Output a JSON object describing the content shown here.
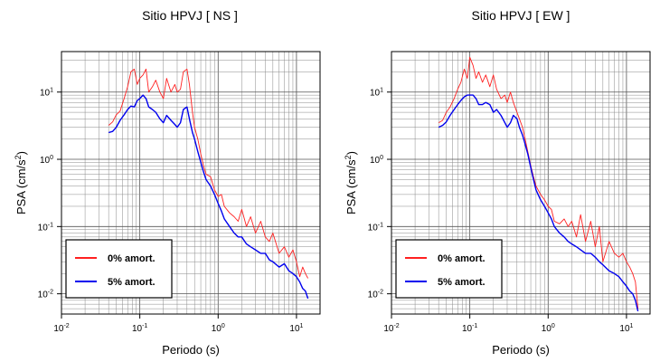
{
  "chart_data": [
    {
      "type": "line",
      "title": "Sitio HPVJ [ NS ]",
      "xlabel": "Periodo (s)",
      "ylabel": "PSA (cm/s²)",
      "xscale": "log",
      "yscale": "log",
      "xlim": [
        0.01,
        20
      ],
      "ylim": [
        0.005,
        40
      ],
      "xticks": [
        {
          "value": 0.01,
          "base": "10",
          "exp": "-2"
        },
        {
          "value": 0.1,
          "base": "10",
          "exp": "-1"
        },
        {
          "value": 1,
          "base": "10",
          "exp": "0"
        },
        {
          "value": 10,
          "base": "10",
          "exp": "1"
        }
      ],
      "yticks": [
        {
          "value": 0.01,
          "base": "10",
          "exp": "-2"
        },
        {
          "value": 0.1,
          "base": "10",
          "exp": "-1"
        },
        {
          "value": 1,
          "base": "10",
          "exp": "0"
        },
        {
          "value": 10,
          "base": "10",
          "exp": "1"
        }
      ],
      "grid": true,
      "legend_position": "bottom-left",
      "series": [
        {
          "name": "0% amort.",
          "color": "#ff2020",
          "x": [
            0.04,
            0.045,
            0.05,
            0.056,
            0.063,
            0.07,
            0.077,
            0.085,
            0.093,
            0.1,
            0.11,
            0.12,
            0.13,
            0.145,
            0.16,
            0.18,
            0.2,
            0.22,
            0.25,
            0.28,
            0.3,
            0.33,
            0.36,
            0.4,
            0.43,
            0.47,
            0.5,
            0.55,
            0.6,
            0.65,
            0.7,
            0.8,
            0.9,
            1.0,
            1.1,
            1.2,
            1.4,
            1.6,
            1.8,
            2.0,
            2.3,
            2.6,
            3.0,
            3.5,
            4.0,
            4.5,
            5.0,
            6.0,
            7.0,
            8.0,
            9.0,
            10.0,
            11.0,
            12.0,
            13.0,
            14.0
          ],
          "y": [
            3.2,
            3.6,
            4.6,
            5.2,
            8.0,
            12.0,
            20.0,
            22.0,
            13.0,
            16.0,
            18.0,
            22.0,
            10.0,
            12.0,
            15.0,
            10.0,
            8.0,
            16.0,
            10.0,
            13.0,
            10.0,
            11.0,
            20.0,
            22.0,
            13.0,
            5.0,
            3.0,
            2.0,
            1.2,
            0.8,
            0.6,
            0.55,
            0.35,
            0.28,
            0.3,
            0.2,
            0.16,
            0.14,
            0.12,
            0.18,
            0.1,
            0.14,
            0.08,
            0.12,
            0.07,
            0.06,
            0.08,
            0.04,
            0.05,
            0.035,
            0.045,
            0.03,
            0.018,
            0.025,
            0.02,
            0.017
          ]
        },
        {
          "name": "5% amort.",
          "color": "#0000ee",
          "x": [
            0.04,
            0.045,
            0.05,
            0.056,
            0.063,
            0.07,
            0.077,
            0.085,
            0.093,
            0.1,
            0.11,
            0.12,
            0.13,
            0.145,
            0.16,
            0.18,
            0.2,
            0.22,
            0.25,
            0.28,
            0.3,
            0.33,
            0.36,
            0.4,
            0.43,
            0.47,
            0.5,
            0.55,
            0.6,
            0.65,
            0.7,
            0.8,
            0.9,
            1.0,
            1.1,
            1.2,
            1.4,
            1.6,
            1.8,
            2.0,
            2.3,
            2.6,
            3.0,
            3.5,
            4.0,
            4.5,
            5.0,
            6.0,
            7.0,
            8.0,
            9.0,
            10.0,
            11.0,
            12.0,
            13.0,
            14.0
          ],
          "y": [
            2.5,
            2.6,
            3.0,
            3.8,
            4.6,
            5.5,
            6.2,
            6.0,
            7.5,
            8.0,
            9.0,
            8.0,
            6.0,
            5.5,
            5.0,
            4.0,
            3.5,
            4.5,
            3.8,
            3.3,
            3.0,
            3.5,
            5.5,
            6.0,
            4.0,
            2.5,
            2.0,
            1.3,
            0.9,
            0.65,
            0.5,
            0.4,
            0.3,
            0.22,
            0.17,
            0.13,
            0.1,
            0.08,
            0.07,
            0.07,
            0.055,
            0.05,
            0.045,
            0.04,
            0.04,
            0.032,
            0.03,
            0.025,
            0.028,
            0.022,
            0.02,
            0.018,
            0.015,
            0.012,
            0.011,
            0.0085
          ]
        }
      ]
    },
    {
      "type": "line",
      "title": "Sitio HPVJ [ EW ]",
      "xlabel": "Periodo (s)",
      "ylabel": "PSA (cm/s²)",
      "xscale": "log",
      "yscale": "log",
      "xlim": [
        0.01,
        20
      ],
      "ylim": [
        0.005,
        40
      ],
      "xticks": [
        {
          "value": 0.01,
          "base": "10",
          "exp": "-2"
        },
        {
          "value": 0.1,
          "base": "10",
          "exp": "-1"
        },
        {
          "value": 1,
          "base": "10",
          "exp": "0"
        },
        {
          "value": 10,
          "base": "10",
          "exp": "1"
        }
      ],
      "yticks": [
        {
          "value": 0.01,
          "base": "10",
          "exp": "-2"
        },
        {
          "value": 0.1,
          "base": "10",
          "exp": "-1"
        },
        {
          "value": 1,
          "base": "10",
          "exp": "0"
        },
        {
          "value": 10,
          "base": "10",
          "exp": "1"
        }
      ],
      "grid": true,
      "legend_position": "bottom-left",
      "series": [
        {
          "name": "0% amort.",
          "color": "#ff2020",
          "x": [
            0.04,
            0.045,
            0.05,
            0.056,
            0.063,
            0.07,
            0.077,
            0.085,
            0.093,
            0.1,
            0.11,
            0.12,
            0.13,
            0.145,
            0.16,
            0.18,
            0.2,
            0.22,
            0.25,
            0.28,
            0.3,
            0.33,
            0.36,
            0.4,
            0.43,
            0.47,
            0.5,
            0.55,
            0.6,
            0.65,
            0.7,
            0.8,
            0.9,
            1.0,
            1.1,
            1.2,
            1.4,
            1.6,
            1.8,
            2.0,
            2.3,
            2.6,
            3.0,
            3.5,
            4.0,
            4.5,
            5.0,
            6.0,
            7.0,
            8.0,
            9.0,
            10.0,
            11.0,
            12.0,
            13.0,
            14.0
          ],
          "y": [
            3.5,
            3.8,
            5.0,
            6.0,
            8.0,
            11.0,
            14.0,
            22.0,
            16.0,
            33.0,
            25.0,
            16.0,
            20.0,
            14.0,
            18.0,
            12.0,
            18.0,
            11.0,
            8.0,
            9.0,
            7.0,
            10.0,
            7.0,
            5.0,
            4.0,
            3.0,
            2.2,
            1.3,
            0.8,
            0.55,
            0.4,
            0.3,
            0.25,
            0.2,
            0.18,
            0.12,
            0.11,
            0.13,
            0.1,
            0.12,
            0.07,
            0.15,
            0.06,
            0.12,
            0.05,
            0.1,
            0.03,
            0.06,
            0.04,
            0.035,
            0.04,
            0.03,
            0.025,
            0.02,
            0.015,
            0.006
          ]
        },
        {
          "name": "5% amort.",
          "color": "#0000ee",
          "x": [
            0.04,
            0.045,
            0.05,
            0.056,
            0.063,
            0.07,
            0.077,
            0.085,
            0.093,
            0.1,
            0.11,
            0.12,
            0.13,
            0.145,
            0.16,
            0.18,
            0.2,
            0.22,
            0.25,
            0.28,
            0.3,
            0.33,
            0.36,
            0.4,
            0.43,
            0.47,
            0.5,
            0.55,
            0.6,
            0.65,
            0.7,
            0.8,
            0.9,
            1.0,
            1.1,
            1.2,
            1.4,
            1.6,
            1.8,
            2.0,
            2.3,
            2.6,
            3.0,
            3.5,
            4.0,
            4.5,
            5.0,
            6.0,
            7.0,
            8.0,
            9.0,
            10.0,
            11.0,
            12.0,
            13.0,
            14.0
          ],
          "y": [
            3.0,
            3.2,
            3.6,
            4.5,
            5.5,
            6.5,
            7.5,
            8.5,
            9.0,
            9.0,
            9.0,
            8.0,
            6.5,
            6.5,
            7.0,
            6.5,
            5.0,
            5.5,
            4.5,
            3.5,
            3.0,
            3.5,
            4.5,
            4.0,
            3.0,
            2.3,
            1.8,
            1.2,
            0.75,
            0.5,
            0.35,
            0.25,
            0.2,
            0.16,
            0.13,
            0.1,
            0.08,
            0.07,
            0.06,
            0.055,
            0.05,
            0.045,
            0.04,
            0.04,
            0.035,
            0.03,
            0.027,
            0.022,
            0.02,
            0.018,
            0.015,
            0.013,
            0.011,
            0.01,
            0.008,
            0.0055
          ]
        }
      ]
    }
  ]
}
